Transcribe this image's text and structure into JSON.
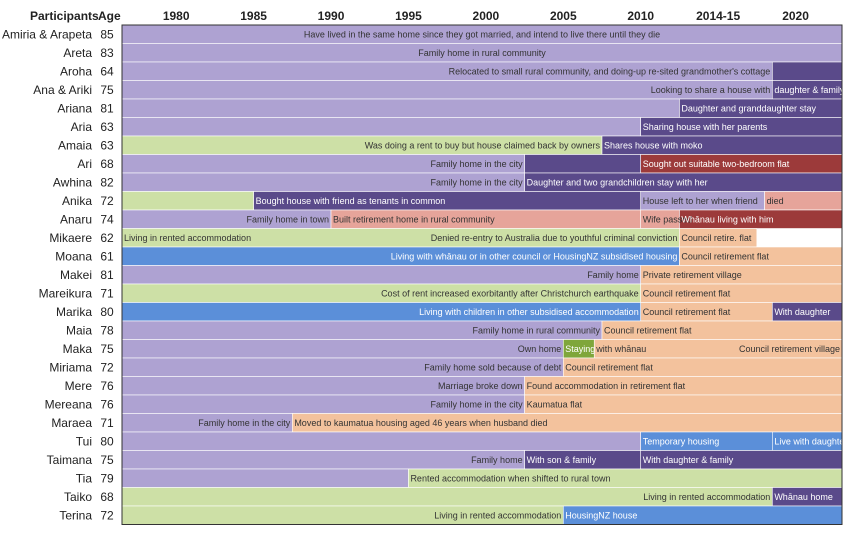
{
  "chart_data": {
    "type": "timeline",
    "header": {
      "participants": "Participants",
      "age": "Age"
    },
    "x_ticks": [
      "1980",
      "1985",
      "1990",
      "1995",
      "2000",
      "2005",
      "2010",
      "2014-15",
      "2020"
    ],
    "colors": {
      "purple": "#aea2d2",
      "darkpurple": "#5a4a8a",
      "green": "#cde0a6",
      "darkgreen": "#7fa63a",
      "blue": "#5b8fd9",
      "peach": "#f3c29d",
      "salmon": "#e6a49a",
      "darkred": "#9c3a3a"
    },
    "rows": [
      {
        "name": "Amiria & Arapeta",
        "age": "85",
        "segments": [
          {
            "start": 1976.5,
            "end": 2023,
            "color": "purple",
            "label": "Have lived in the same home since they got married, and intend to live there until they die"
          }
        ]
      },
      {
        "name": "Areta",
        "age": "83",
        "segments": [
          {
            "start": 1976.5,
            "end": 2023,
            "color": "purple",
            "label": "Family home in rural community"
          }
        ]
      },
      {
        "name": "Aroha",
        "age": "64",
        "segments": [
          {
            "start": 1976.5,
            "end": 2018.5,
            "color": "purple",
            "label": "Relocated to small rural community, and doing-up re-sited grandmother's cottage"
          },
          {
            "start": 2018.5,
            "end": 2023,
            "color": "darkpurple",
            "label": ""
          }
        ]
      },
      {
        "name": "Ana & Ariki",
        "age": "75",
        "segments": [
          {
            "start": 1976.5,
            "end": 2018.5,
            "color": "purple",
            "label": "Looking to share a house with"
          },
          {
            "start": 2018.5,
            "end": 2023,
            "color": "darkpurple",
            "label": "daughter & family"
          }
        ]
      },
      {
        "name": "Ariana",
        "age": "81",
        "segments": [
          {
            "start": 1976.5,
            "end": 2012.5,
            "color": "purple",
            "label": ""
          },
          {
            "start": 2012.5,
            "end": 2023,
            "color": "darkpurple",
            "label": "Daughter and granddaughter stay"
          }
        ]
      },
      {
        "name": "Aria",
        "age": "63",
        "segments": [
          {
            "start": 1976.5,
            "end": 2010,
            "color": "purple",
            "label": ""
          },
          {
            "start": 2010,
            "end": 2023,
            "color": "darkpurple",
            "label": "Sharing house with her parents"
          }
        ]
      },
      {
        "name": "Amaia",
        "age": "63",
        "segments": [
          {
            "start": 1976.5,
            "end": 2007.5,
            "color": "green",
            "label": "Was doing a rent to buy but house claimed back by owners"
          },
          {
            "start": 2007.5,
            "end": 2023,
            "color": "darkpurple",
            "label": "Shares house with moko"
          }
        ]
      },
      {
        "name": "Ari",
        "age": "68",
        "segments": [
          {
            "start": 1976.5,
            "end": 2002.5,
            "color": "purple",
            "label": "Family home in the city"
          },
          {
            "start": 2002.5,
            "end": 2010,
            "color": "darkpurple",
            "label": ""
          },
          {
            "start": 2010,
            "end": 2023,
            "color": "darkred",
            "label": "Sought out suitable two-bedroom flat"
          }
        ]
      },
      {
        "name": "Awhina",
        "age": "82",
        "segments": [
          {
            "start": 1976.5,
            "end": 2002.5,
            "color": "purple",
            "label": "Family home in the city"
          },
          {
            "start": 2002.5,
            "end": 2023,
            "color": "darkpurple",
            "label": "Daughter and two grandchildren stay with her"
          }
        ]
      },
      {
        "name": "Anika",
        "age": "72",
        "segments": [
          {
            "start": 1976.5,
            "end": 1985,
            "color": "green",
            "label": ""
          },
          {
            "start": 1985,
            "end": 2010,
            "color": "darkpurple",
            "label": "Bought house with friend as tenants in common"
          },
          {
            "start": 2010,
            "end": 2018,
            "color": "purple",
            "label": "House left to her when friend"
          },
          {
            "start": 2018,
            "end": 2023,
            "color": "salmon",
            "label": "died"
          }
        ]
      },
      {
        "name": "Anaru",
        "age": "74",
        "segments": [
          {
            "start": 1976.5,
            "end": 1990,
            "color": "purple",
            "label": "Family home in town"
          },
          {
            "start": 1990,
            "end": 2010,
            "color": "salmon",
            "label": "Built retirement home in rural community"
          },
          {
            "start": 2010,
            "end": 2012.5,
            "color": "salmon",
            "label": "Wife passed"
          },
          {
            "start": 2012.5,
            "end": 2023,
            "color": "darkred",
            "label": "Whānau living with him"
          }
        ]
      },
      {
        "name": "Mikaere",
        "age": "62",
        "segments": [
          {
            "start": 1976.5,
            "end": 2012.5,
            "color": "green",
            "label": "Living in rented accommodation|Denied re-entry to Australia due to youthful criminal conviction"
          },
          {
            "start": 2012.5,
            "end": 2017.5,
            "color": "peach",
            "label": "Council retire. flat"
          }
        ]
      },
      {
        "name": "Moana",
        "age": "61",
        "segments": [
          {
            "start": 1976.5,
            "end": 2012.5,
            "color": "blue",
            "label": "Living with whānau or in other council or HousingNZ subsidised housing"
          },
          {
            "start": 2012.5,
            "end": 2023,
            "color": "peach",
            "label": "Council retirement flat"
          }
        ]
      },
      {
        "name": "Makei",
        "age": "81",
        "segments": [
          {
            "start": 1976.5,
            "end": 2010,
            "color": "purple",
            "label": "Family home"
          },
          {
            "start": 2010,
            "end": 2023,
            "color": "peach",
            "label": "Private retirement village"
          }
        ]
      },
      {
        "name": "Mareikura",
        "age": "71",
        "segments": [
          {
            "start": 1976.5,
            "end": 2010,
            "color": "green",
            "label": "Cost of rent increased exorbitantly after Christchurch earthquake"
          },
          {
            "start": 2010,
            "end": 2023,
            "color": "peach",
            "label": "Council retirement flat"
          }
        ]
      },
      {
        "name": "Marika",
        "age": "80",
        "segments": [
          {
            "start": 1976.5,
            "end": 2010,
            "color": "blue",
            "label": "Living with children in other subsidised accommodation"
          },
          {
            "start": 2010,
            "end": 2018.5,
            "color": "peach",
            "label": "Council retirement flat"
          },
          {
            "start": 2018.5,
            "end": 2023,
            "color": "darkpurple",
            "label": "With daughter"
          }
        ]
      },
      {
        "name": "Maia",
        "age": "78",
        "segments": [
          {
            "start": 1976.5,
            "end": 2007.5,
            "color": "purple",
            "label": "Family home in rural community"
          },
          {
            "start": 2007.5,
            "end": 2023,
            "color": "peach",
            "label": "Council retirement flat"
          }
        ]
      },
      {
        "name": "Maka",
        "age": "75",
        "segments": [
          {
            "start": 1976.5,
            "end": 2005,
            "color": "purple",
            "label": "Own home"
          },
          {
            "start": 2005,
            "end": 2007,
            "color": "darkgreen",
            "label": "Staying"
          },
          {
            "start": 2007,
            "end": 2023,
            "color": "peach",
            "label": "with whānau|Council retirement village"
          }
        ]
      },
      {
        "name": "Miriama",
        "age": "72",
        "segments": [
          {
            "start": 1976.5,
            "end": 2005,
            "color": "purple",
            "label": "Family home sold because of debt"
          },
          {
            "start": 2005,
            "end": 2023,
            "color": "peach",
            "label": "Council retirement flat"
          }
        ]
      },
      {
        "name": "Mere",
        "age": "76",
        "segments": [
          {
            "start": 1976.5,
            "end": 2002.5,
            "color": "purple",
            "label": "Marriage broke down"
          },
          {
            "start": 2002.5,
            "end": 2023,
            "color": "peach",
            "label": "Found accommodation in retirement flat"
          }
        ]
      },
      {
        "name": "Mereana",
        "age": "76",
        "segments": [
          {
            "start": 1976.5,
            "end": 2002.5,
            "color": "purple",
            "label": "Family home in the city"
          },
          {
            "start": 2002.5,
            "end": 2023,
            "color": "peach",
            "label": "Kaumatua flat"
          }
        ]
      },
      {
        "name": "Maraea",
        "age": "71",
        "segments": [
          {
            "start": 1976.5,
            "end": 1987.5,
            "color": "purple",
            "label": "Family home in the city"
          },
          {
            "start": 1987.5,
            "end": 2023,
            "color": "peach",
            "label": "Moved to kaumatua housing aged 46 years when husband died"
          }
        ]
      },
      {
        "name": "Tui",
        "age": "80",
        "segments": [
          {
            "start": 1976.5,
            "end": 2010,
            "color": "purple",
            "label": ""
          },
          {
            "start": 2010,
            "end": 2018.5,
            "color": "blue",
            "label": "Temporary housing"
          },
          {
            "start": 2018.5,
            "end": 2023,
            "color": "blue",
            "label": "Live with daughter"
          }
        ]
      },
      {
        "name": "Taimana",
        "age": "75",
        "segments": [
          {
            "start": 1976.5,
            "end": 2002.5,
            "color": "purple",
            "label": "Family home"
          },
          {
            "start": 2002.5,
            "end": 2010,
            "color": "darkpurple",
            "label": "With son & family"
          },
          {
            "start": 2010,
            "end": 2023,
            "color": "darkpurple",
            "label": "With daughter & family"
          }
        ]
      },
      {
        "name": "Tia",
        "age": "79",
        "segments": [
          {
            "start": 1976.5,
            "end": 1995,
            "color": "purple",
            "label": ""
          },
          {
            "start": 1995,
            "end": 2023,
            "color": "green",
            "label": "Rented accommodation when shifted to rural town"
          }
        ]
      },
      {
        "name": "Taiko",
        "age": "68",
        "segments": [
          {
            "start": 1976.5,
            "end": 2018.5,
            "color": "green",
            "label": "Living in rented accommodation"
          },
          {
            "start": 2018.5,
            "end": 2023,
            "color": "darkpurple",
            "label": "Whānau home"
          }
        ]
      },
      {
        "name": "Terina",
        "age": "72",
        "segments": [
          {
            "start": 1976.5,
            "end": 2005,
            "color": "green",
            "label": "Living in rented accommodation"
          },
          {
            "start": 2005,
            "end": 2023,
            "color": "blue",
            "label": "HousingNZ house"
          }
        ]
      }
    ]
  }
}
